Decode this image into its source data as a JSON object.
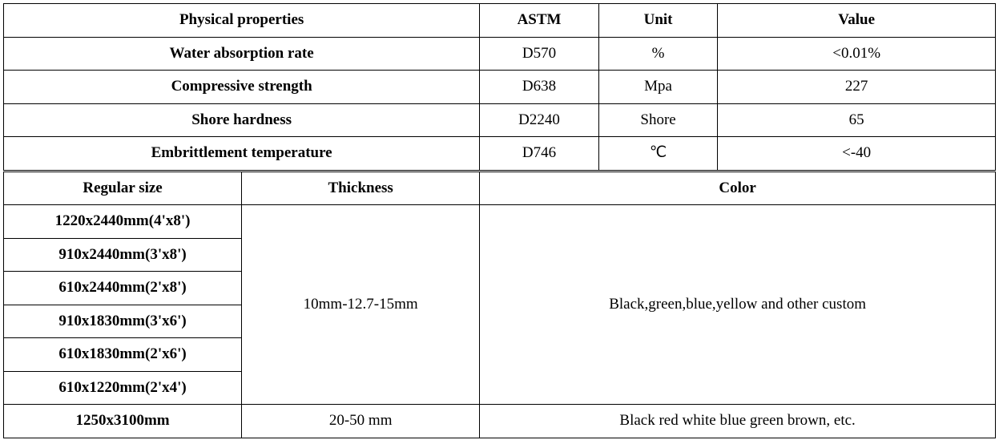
{
  "physical_properties_table": {
    "type": "table",
    "background_color": "#ffffff",
    "border_color": "#000000",
    "text_color": "#000000",
    "font_family": "Times New Roman",
    "header_fontsize": 19,
    "cell_fontsize": 19,
    "columns": [
      {
        "label": "Physical properties",
        "width_pct": 48,
        "bold": true
      },
      {
        "label": "ASTM",
        "width_pct": 12,
        "bold": true
      },
      {
        "label": "Unit",
        "width_pct": 12,
        "bold": true
      },
      {
        "label": "Value",
        "width_pct": 28,
        "bold": true
      }
    ],
    "rows": [
      {
        "property": "Water absorption rate",
        "astm": "D570",
        "unit": "%",
        "value": "<0.01%"
      },
      {
        "property": "Compressive strength",
        "astm": "D638",
        "unit": "Mpa",
        "value": "227"
      },
      {
        "property": "Shore hardness",
        "astm": "D2240",
        "unit": "Shore",
        "value": "65"
      },
      {
        "property": "Embrittlement temperature",
        "astm": "D746",
        "unit": "℃",
        "value": "<-40"
      }
    ]
  },
  "sizes_table": {
    "type": "table",
    "background_color": "#ffffff",
    "border_color": "#000000",
    "text_color": "#000000",
    "font_family": "Times New Roman",
    "header_fontsize": 19,
    "cell_fontsize": 19,
    "columns": [
      {
        "label": "Regular size",
        "width_pct": 24,
        "bold": true
      },
      {
        "label": "Thickness",
        "width_pct": 24,
        "bold": true
      },
      {
        "label": "Color",
        "width_pct": 52,
        "bold": true
      }
    ],
    "group1": {
      "sizes": [
        "1220x2440mm(4'x8')",
        "910x2440mm(3'x8')",
        "610x2440mm(2'x8')",
        "910x1830mm(3'x6')",
        "610x1830mm(2'x6')",
        "610x1220mm(2'x4')"
      ],
      "thickness": "10mm-12.7-15mm",
      "color": "Black,green,blue,yellow and other custom"
    },
    "group2": {
      "size": "1250x3100mm",
      "thickness": "20-50 mm",
      "color": "Black red white blue green brown, etc."
    }
  }
}
